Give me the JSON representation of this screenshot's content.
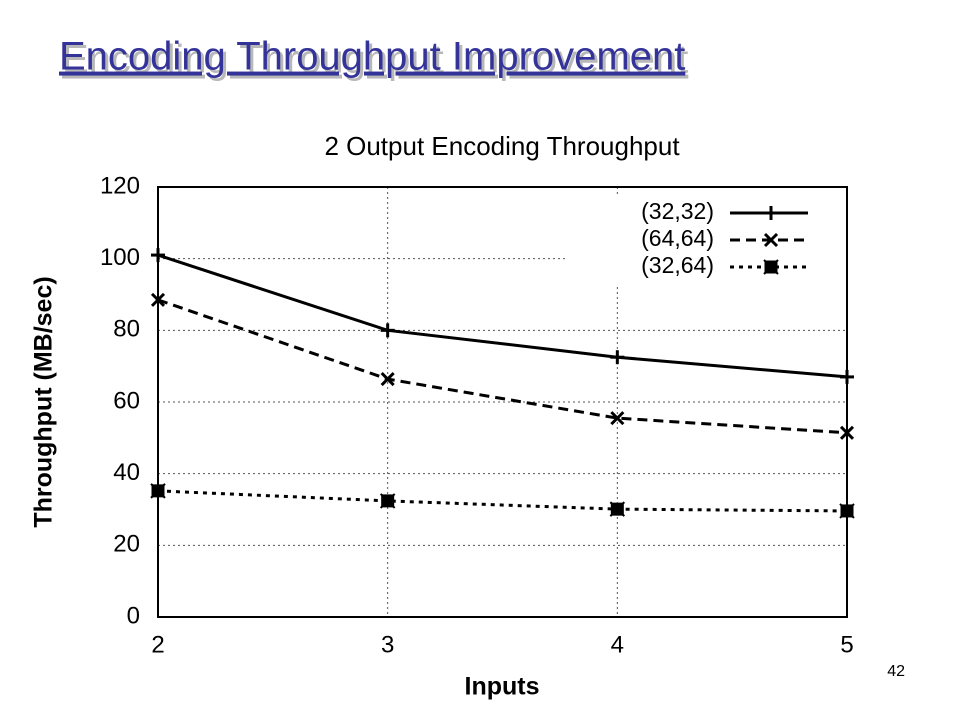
{
  "title": "Encoding Throughput Improvement",
  "page_number": 42,
  "chart_data": {
    "type": "line",
    "title": "2 Output Encoding Throughput",
    "x_label": "Inputs",
    "y_label": "Throughput (MB/sec)",
    "x": [
      2,
      3,
      4,
      5
    ],
    "series": [
      {
        "name": "(32,32)",
        "color": "#000000",
        "dash": "solid",
        "marker": "plus",
        "values": [
          101,
          80,
          72.5,
          67
        ]
      },
      {
        "name": "(64,64)",
        "color": "#000000",
        "dash": "dashed",
        "marker": "cross",
        "values": [
          88.5,
          66.4,
          55.5,
          51.4
        ]
      },
      {
        "name": "(32,64)",
        "color": "#000000",
        "dash": "dotted",
        "marker": "square",
        "values": [
          35.2,
          32.4,
          30.1,
          29.6
        ]
      }
    ],
    "xlim": [
      2,
      5
    ],
    "xticks": [
      2,
      3,
      4,
      5
    ],
    "ylim": [
      0,
      120
    ],
    "yticks": [
      0,
      20,
      40,
      60,
      80,
      100,
      120
    ],
    "grid": true,
    "legend": "upper-right"
  }
}
